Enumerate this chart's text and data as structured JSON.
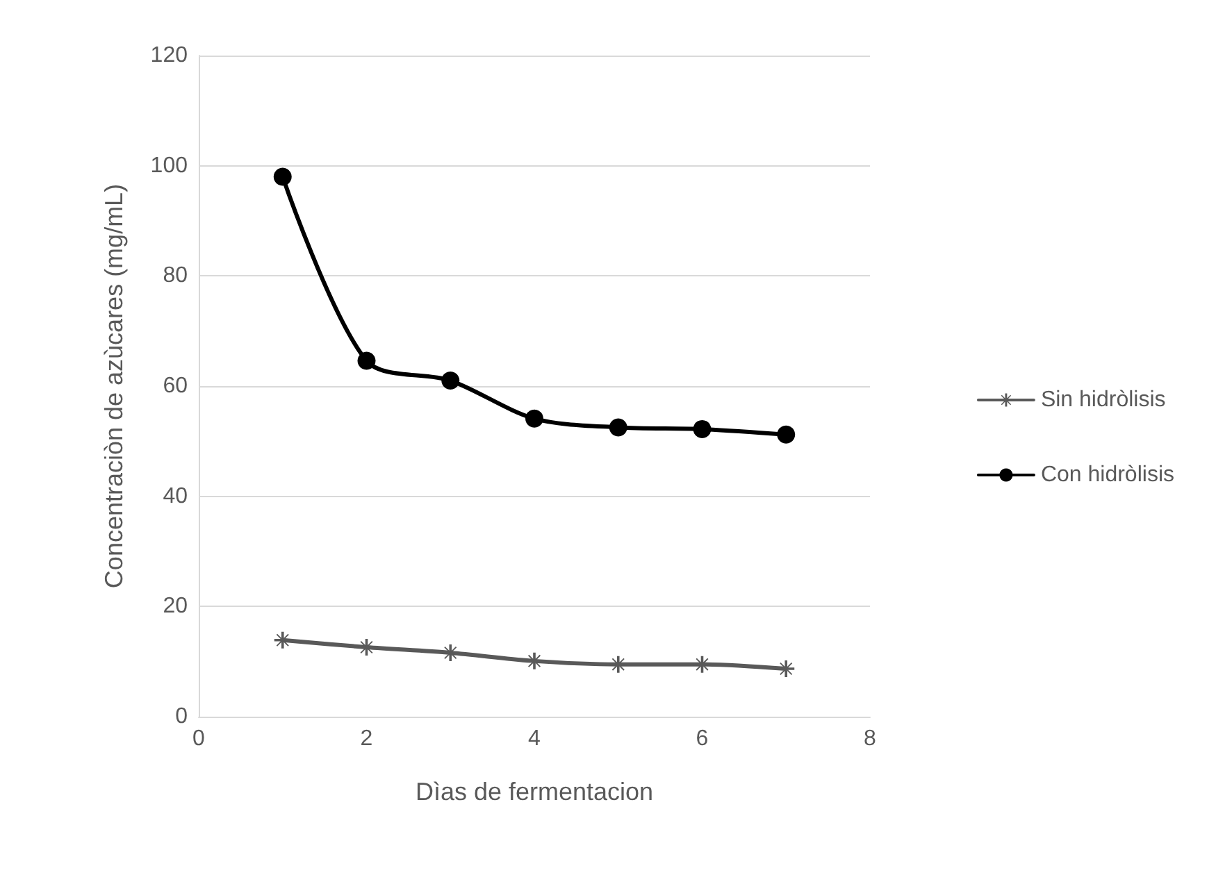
{
  "chart_data": {
    "type": "line",
    "xlabel": "Dìas de fermentacion",
    "ylabel": "Concentraciòn de azùcares (mg/mL)",
    "x": [
      1,
      2,
      3,
      4,
      5,
      6,
      7
    ],
    "series": [
      {
        "name": "Sin hidròlisis",
        "color": "#595959",
        "marker": "cross",
        "values": [
          13.9,
          12.6,
          11.6,
          10.1,
          9.5,
          9.5,
          8.7
        ]
      },
      {
        "name": "Con hidròlisis",
        "color": "#000000",
        "marker": "circle",
        "values": [
          98,
          64.6,
          61,
          54.1,
          52.5,
          52.2,
          51.2
        ]
      }
    ],
    "xlim": [
      0,
      8
    ],
    "xticks": [
      0,
      2,
      4,
      6,
      8
    ],
    "ylim": [
      0,
      120
    ],
    "yticks": [
      0,
      20,
      40,
      60,
      80,
      100,
      120
    ],
    "grid": "y",
    "legend": "right",
    "line_style": "solid"
  }
}
